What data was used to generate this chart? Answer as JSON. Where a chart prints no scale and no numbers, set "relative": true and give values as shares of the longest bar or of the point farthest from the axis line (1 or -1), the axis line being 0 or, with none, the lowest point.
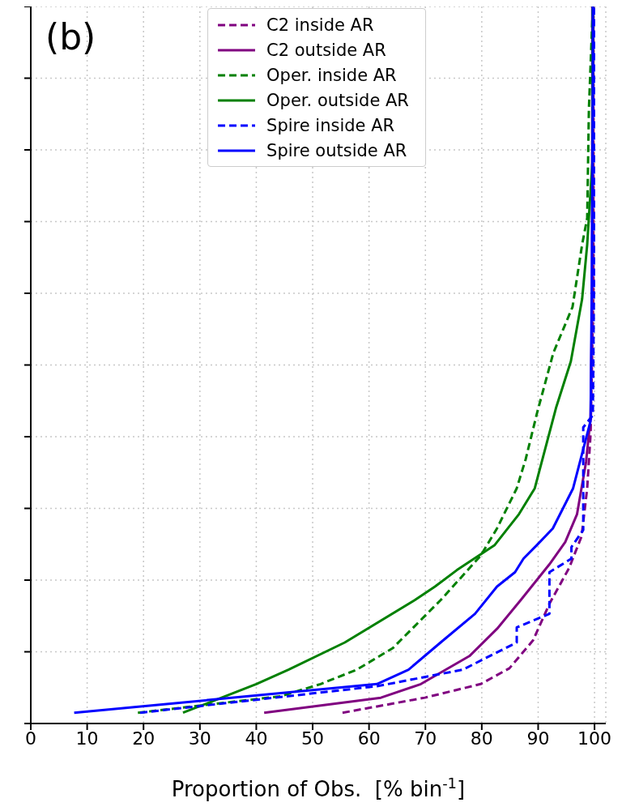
{
  "chart_data": {
    "type": "line",
    "annotations": [
      "(b)"
    ],
    "xlabel": "Proportion of Obs.  [% bin$^{-1}$]",
    "xlim": [
      0,
      102
    ],
    "xticks": [
      0,
      10,
      20,
      30,
      40,
      50,
      60,
      70,
      80,
      90,
      100
    ],
    "relative": true,
    "grid": true,
    "legend": "top",
    "marker": "none",
    "series": [
      {
        "name": "C2 inside AR",
        "color": "#800080",
        "line_style": "dashed",
        "x": [
          55.3,
          69.9,
          79.8,
          84.9,
          89.1,
          92,
          95.5,
          97.7,
          98.7,
          99.3,
          99.8,
          99.8
        ],
        "values": [
          0.015,
          0.036,
          0.055,
          0.077,
          0.116,
          0.167,
          0.217,
          0.261,
          0.328,
          0.404,
          0.601,
          1
        ]
      },
      {
        "name": "C2 outside AR",
        "color": "#800080",
        "line_style": "solid",
        "x": [
          41.4,
          62.1,
          69.2,
          77.8,
          82.7,
          86.9,
          92,
          94.8,
          96.9,
          98.5,
          99.3,
          99.6,
          99.6
        ],
        "values": [
          0.015,
          0.036,
          0.055,
          0.094,
          0.132,
          0.172,
          0.222,
          0.253,
          0.292,
          0.365,
          0.427,
          0.601,
          1
        ]
      },
      {
        "name": "Oper. inside AR",
        "color": "#008000",
        "line_style": "dashed",
        "x": [
          19,
          44.3,
          51.4,
          57.8,
          64.2,
          72.7,
          79.8,
          82.7,
          86.2,
          87.8,
          89.8,
          92.7,
          96.1,
          97.8,
          98.7,
          99,
          99.7
        ],
        "values": [
          0.015,
          0.038,
          0.055,
          0.075,
          0.105,
          0.172,
          0.234,
          0.272,
          0.328,
          0.369,
          0.433,
          0.517,
          0.581,
          0.668,
          0.705,
          0.857,
          1
        ]
      },
      {
        "name": "Oper. outside AR",
        "color": "#008000",
        "line_style": "solid",
        "x": [
          27,
          33.2,
          40,
          45.7,
          55.7,
          68.1,
          71.7,
          75.6,
          82.3,
          86.6,
          89.4,
          93.2,
          95.8,
          97.8,
          98.7,
          99.6,
          99.7
        ],
        "values": [
          0.015,
          0.034,
          0.055,
          0.075,
          0.113,
          0.172,
          0.191,
          0.214,
          0.249,
          0.292,
          0.328,
          0.441,
          0.505,
          0.592,
          0.668,
          0.781,
          1
        ]
      },
      {
        "name": "Spire inside AR",
        "color": "#0000ff",
        "line_style": "dashed",
        "x": [
          19.4,
          61.4,
          76.6,
          86.2,
          86.2,
          92,
          92,
          95.9,
          95.9,
          98,
          98,
          98,
          99.7,
          99.9,
          99.9
        ],
        "values": [
          0.015,
          0.052,
          0.075,
          0.113,
          0.134,
          0.153,
          0.211,
          0.23,
          0.246,
          0.27,
          0.404,
          0.413,
          0.43,
          0.601,
          1
        ]
      },
      {
        "name": "Spire outside AR",
        "color": "#0000ff",
        "line_style": "solid",
        "x": [
          7.7,
          61.4,
          67,
          72.7,
          78.8,
          82.7,
          85.9,
          87.4,
          89.8,
          92.6,
          96.2,
          99.3,
          99.5,
          99.7,
          99.7
        ],
        "values": [
          0.015,
          0.055,
          0.075,
          0.113,
          0.153,
          0.191,
          0.211,
          0.23,
          0.249,
          0.272,
          0.328,
          0.422,
          0.601,
          0.897,
          1
        ]
      }
    ]
  }
}
